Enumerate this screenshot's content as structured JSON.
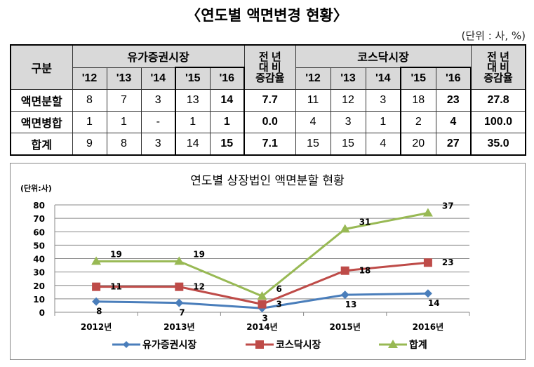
{
  "title": "〈연도별 액면변경 현황〉",
  "unit": "(단위 : 사, %)",
  "table": {
    "corner": "구분",
    "group1": "유가증권시장",
    "group2": "코스닥시장",
    "rate_header": [
      "전 년",
      "대 비",
      "증감율"
    ],
    "years": [
      "'12",
      "'13",
      "'14",
      "'15",
      "'16"
    ],
    "rows": [
      {
        "label": "액면분할",
        "kospi": [
          "8",
          "7",
          "3",
          "13",
          "14"
        ],
        "kospi_rate": "7.7",
        "kosdaq": [
          "11",
          "12",
          "3",
          "18",
          "23"
        ],
        "kosdaq_rate": "27.8"
      },
      {
        "label": "액면병합",
        "kospi": [
          "1",
          "1",
          "-",
          "1",
          "1"
        ],
        "kospi_rate": "0.0",
        "kosdaq": [
          "4",
          "3",
          "1",
          "2",
          "4"
        ],
        "kosdaq_rate": "100.0"
      },
      {
        "label": "합계",
        "kospi": [
          "9",
          "8",
          "3",
          "14",
          "15"
        ],
        "kospi_rate": "7.1",
        "kosdaq": [
          "15",
          "15",
          "4",
          "20",
          "27"
        ],
        "kosdaq_rate": "35.0"
      }
    ]
  },
  "chart_data": {
    "type": "line",
    "stacked": true,
    "title": "연도별 상장법인 액면분할 현황",
    "unit": "(단위:사)",
    "categories": [
      "2012년",
      "2013년",
      "2014년",
      "2015년",
      "2016년"
    ],
    "ylim": [
      0,
      80
    ],
    "yticks": [
      0,
      10,
      20,
      30,
      40,
      50,
      60,
      70,
      80
    ],
    "grid": true,
    "legend": "bottom",
    "series": [
      {
        "name": "유가증권시장",
        "values": [
          8,
          7,
          3,
          13,
          14
        ],
        "color": "#4a7ebb",
        "marker": "diamond"
      },
      {
        "name": "코스닥시장",
        "values": [
          11,
          12,
          3,
          18,
          23
        ],
        "color": "#be4b48",
        "marker": "square"
      },
      {
        "name": "합계",
        "values": [
          19,
          19,
          6,
          31,
          37
        ],
        "color": "#98b954",
        "marker": "triangle"
      }
    ]
  }
}
